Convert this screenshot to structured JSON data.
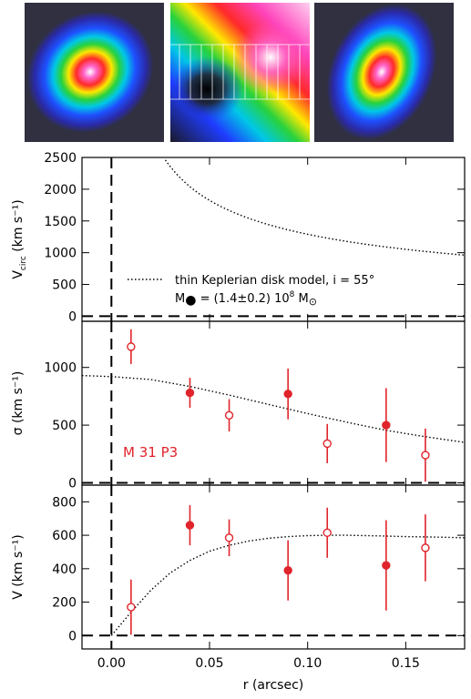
{
  "images": {
    "panels": [
      {
        "name": "velocity-dispersion-map"
      },
      {
        "name": "velocity-field-map"
      },
      {
        "name": "intensity-map"
      }
    ]
  },
  "colors": {
    "model_line": "#000000",
    "data_points": "#e0242b",
    "zero_line": "#000000",
    "annotation_text": "#e0242b"
  },
  "chart_data": [
    {
      "type": "line",
      "xlim": [
        -0.015,
        0.18
      ],
      "ylim": [
        -80,
        2500
      ],
      "ylabel": "V",
      "ylabel_subscript": "circ",
      "yunit": "(km s⁻¹)",
      "yticks": [
        0,
        500,
        1000,
        1500,
        2000,
        2500
      ],
      "series": [
        {
          "name": "thin Keplerian disk model, i = 55°",
          "style": "dotted",
          "formula": "keplerian",
          "coef": 408,
          "power": -0.5
        }
      ],
      "legend_line1": "thin Keplerian disk model, i = 55°",
      "legend_line2_prefix": "M",
      "legend_line2_value": " = (1.4±0.2) 10",
      "legend_line2_exp": "8",
      "legend_line2_unit": " M",
      "zero_line": true,
      "vertical_line_x": 0
    },
    {
      "type": "scatter",
      "xlim": [
        -0.015,
        0.18
      ],
      "ylim": [
        -20,
        1400
      ],
      "ylabel": "σ",
      "yunit": "(km s⁻¹)",
      "yticks": [
        0,
        500,
        1000
      ],
      "annotation": "M 31  P3",
      "points": [
        {
          "x": 0.01,
          "y": 1180,
          "err": 150,
          "filled": false
        },
        {
          "x": 0.04,
          "y": 780,
          "err": 130,
          "filled": true
        },
        {
          "x": 0.06,
          "y": 585,
          "err": 140,
          "filled": false
        },
        {
          "x": 0.09,
          "y": 770,
          "err": 220,
          "filled": true
        },
        {
          "x": 0.11,
          "y": 340,
          "err": 170,
          "filled": false
        },
        {
          "x": 0.14,
          "y": 500,
          "err": 320,
          "filled": true
        },
        {
          "x": 0.16,
          "y": 240,
          "err": 230,
          "filled": false
        }
      ],
      "model": [
        [
          -0.015,
          930
        ],
        [
          0.0,
          920
        ],
        [
          0.02,
          895
        ],
        [
          0.04,
          835
        ],
        [
          0.06,
          760
        ],
        [
          0.08,
          680
        ],
        [
          0.1,
          600
        ],
        [
          0.12,
          525
        ],
        [
          0.14,
          455
        ],
        [
          0.16,
          400
        ],
        [
          0.18,
          350
        ]
      ],
      "zero_line": true,
      "vertical_line_x": 0
    },
    {
      "type": "scatter",
      "xlim": [
        -0.015,
        0.18
      ],
      "ylim": [
        -80,
        900
      ],
      "ylabel": "V",
      "yunit": "(km s⁻¹)",
      "xlabel": "r  (arcsec)",
      "yticks": [
        0,
        200,
        400,
        600,
        800
      ],
      "xticks": [
        0.0,
        0.05,
        0.1,
        0.15
      ],
      "xtick_labels": [
        "0.00",
        "0.05",
        "0.10",
        "0.15"
      ],
      "points": [
        {
          "x": 0.01,
          "y": 170,
          "err": 165,
          "filled": false
        },
        {
          "x": 0.04,
          "y": 660,
          "err": 120,
          "filled": true
        },
        {
          "x": 0.06,
          "y": 585,
          "err": 110,
          "filled": false
        },
        {
          "x": 0.09,
          "y": 390,
          "err": 180,
          "filled": true
        },
        {
          "x": 0.11,
          "y": 615,
          "err": 150,
          "filled": false
        },
        {
          "x": 0.14,
          "y": 420,
          "err": 270,
          "filled": true
        },
        {
          "x": 0.16,
          "y": 525,
          "err": 200,
          "filled": false
        }
      ],
      "model": [
        [
          0.0,
          0
        ],
        [
          0.01,
          140
        ],
        [
          0.02,
          270
        ],
        [
          0.03,
          375
        ],
        [
          0.04,
          450
        ],
        [
          0.05,
          505
        ],
        [
          0.06,
          540
        ],
        [
          0.07,
          565
        ],
        [
          0.08,
          582
        ],
        [
          0.09,
          592
        ],
        [
          0.1,
          598
        ],
        [
          0.11,
          600
        ],
        [
          0.12,
          600
        ],
        [
          0.13,
          598
        ],
        [
          0.14,
          595
        ],
        [
          0.15,
          592
        ],
        [
          0.16,
          590
        ],
        [
          0.17,
          588
        ],
        [
          0.18,
          585
        ]
      ],
      "zero_line": true,
      "vertical_line_x": 0
    }
  ]
}
